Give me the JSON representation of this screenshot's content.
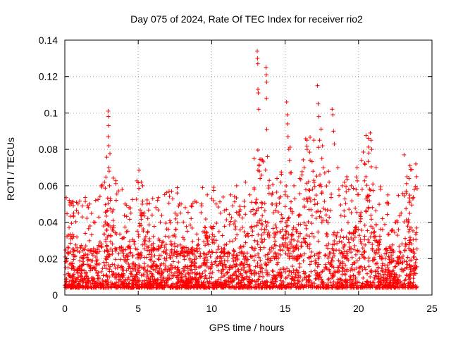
{
  "chart_data": {
    "type": "scatter",
    "title": "Day 075 of 2024, Rate Of TEC Index for receiver rio2",
    "xlabel": "GPS time / hours",
    "ylabel": "ROTI / TECUs",
    "xlim": [
      0,
      25
    ],
    "ylim": [
      0,
      0.14
    ],
    "x_ticks": [
      "0",
      "5",
      "10",
      "15",
      "20",
      "25"
    ],
    "y_ticks": [
      "0",
      "0.02",
      "0.04",
      "0.06",
      "0.08",
      "0.1",
      "0.12",
      "0.14"
    ],
    "grid": true,
    "marker": "+",
    "color": "#ff0000",
    "series": [
      {
        "points": [
          [
            0.3,
            0.052
          ],
          [
            0.6,
            0.045
          ],
          [
            0.9,
            0.05
          ],
          [
            1.2,
            0.049
          ],
          [
            1.6,
            0.048
          ],
          [
            1.7,
            0.05
          ],
          [
            2.1,
            0.052
          ],
          [
            2.5,
            0.06
          ],
          [
            2.7,
            0.062
          ],
          [
            2.95,
            0.101
          ],
          [
            2.97,
            0.098
          ],
          [
            2.98,
            0.093
          ],
          [
            2.96,
            0.087
          ],
          [
            2.99,
            0.082
          ],
          [
            3.0,
            0.07
          ],
          [
            3.02,
            0.068
          ],
          [
            3.05,
            0.06
          ],
          [
            3.1,
            0.052
          ],
          [
            3.5,
            0.052
          ],
          [
            3.9,
            0.058
          ],
          [
            4.1,
            0.05
          ],
          [
            4.5,
            0.045
          ],
          [
            5.2,
            0.062
          ],
          [
            5.3,
            0.06
          ],
          [
            5.6,
            0.05
          ],
          [
            5.4,
            0.045
          ],
          [
            6.5,
            0.04
          ],
          [
            7.1,
            0.057
          ],
          [
            7.5,
            0.045
          ],
          [
            7.8,
            0.05
          ],
          [
            8.2,
            0.048
          ],
          [
            8.6,
            0.042
          ],
          [
            9.3,
            0.05
          ],
          [
            9.7,
            0.055
          ],
          [
            10.0,
            0.053
          ],
          [
            10.3,
            0.05
          ],
          [
            10.6,
            0.045
          ],
          [
            11.3,
            0.055
          ],
          [
            11.7,
            0.06
          ],
          [
            12.3,
            0.062
          ],
          [
            12.6,
            0.055
          ],
          [
            12.9,
            0.058
          ],
          [
            13.1,
            0.134
          ],
          [
            13.12,
            0.13
          ],
          [
            13.14,
            0.127
          ],
          [
            13.15,
            0.113
          ],
          [
            13.17,
            0.111
          ],
          [
            13.2,
            0.102
          ],
          [
            13.25,
            0.068
          ],
          [
            13.3,
            0.064
          ],
          [
            13.7,
            0.125
          ],
          [
            13.72,
            0.121
          ],
          [
            13.74,
            0.117
          ],
          [
            13.73,
            0.108
          ],
          [
            13.75,
            0.091
          ],
          [
            13.8,
            0.076
          ],
          [
            13.9,
            0.06
          ],
          [
            14.1,
            0.055
          ],
          [
            14.4,
            0.05
          ],
          [
            14.7,
            0.062
          ],
          [
            15.0,
            0.055
          ],
          [
            15.1,
            0.106
          ],
          [
            15.15,
            0.099
          ],
          [
            15.17,
            0.094
          ],
          [
            15.2,
            0.087
          ],
          [
            15.25,
            0.08
          ],
          [
            15.3,
            0.074
          ],
          [
            15.35,
            0.067
          ],
          [
            15.6,
            0.06
          ],
          [
            16.0,
            0.064
          ],
          [
            16.3,
            0.07
          ],
          [
            16.5,
            0.08
          ],
          [
            16.7,
            0.074
          ],
          [
            16.9,
            0.068
          ],
          [
            17.2,
            0.115
          ],
          [
            17.25,
            0.105
          ],
          [
            17.3,
            0.098
          ],
          [
            17.35,
            0.085
          ],
          [
            17.5,
            0.075
          ],
          [
            17.7,
            0.067
          ],
          [
            18.0,
            0.062
          ],
          [
            18.2,
            0.102
          ],
          [
            18.25,
            0.099
          ],
          [
            18.3,
            0.09
          ],
          [
            18.35,
            0.083
          ],
          [
            18.6,
            0.07
          ],
          [
            18.9,
            0.06
          ],
          [
            19.2,
            0.065
          ],
          [
            19.5,
            0.06
          ],
          [
            19.9,
            0.07
          ],
          [
            20.2,
            0.074
          ],
          [
            20.5,
            0.065
          ],
          [
            20.7,
            0.078
          ],
          [
            20.8,
            0.089
          ],
          [
            20.85,
            0.085
          ],
          [
            20.9,
            0.08
          ],
          [
            21.2,
            0.07
          ],
          [
            21.5,
            0.058
          ],
          [
            22.0,
            0.055
          ],
          [
            22.5,
            0.04
          ],
          [
            22.9,
            0.045
          ],
          [
            23.1,
            0.077
          ],
          [
            23.3,
            0.065
          ],
          [
            23.5,
            0.071
          ],
          [
            23.55,
            0.069
          ],
          [
            23.9,
            0.072
          ],
          [
            23.95,
            0.065
          ],
          [
            23.8,
            0.058
          ],
          [
            23.7,
            0.053
          ]
        ]
      }
    ]
  }
}
